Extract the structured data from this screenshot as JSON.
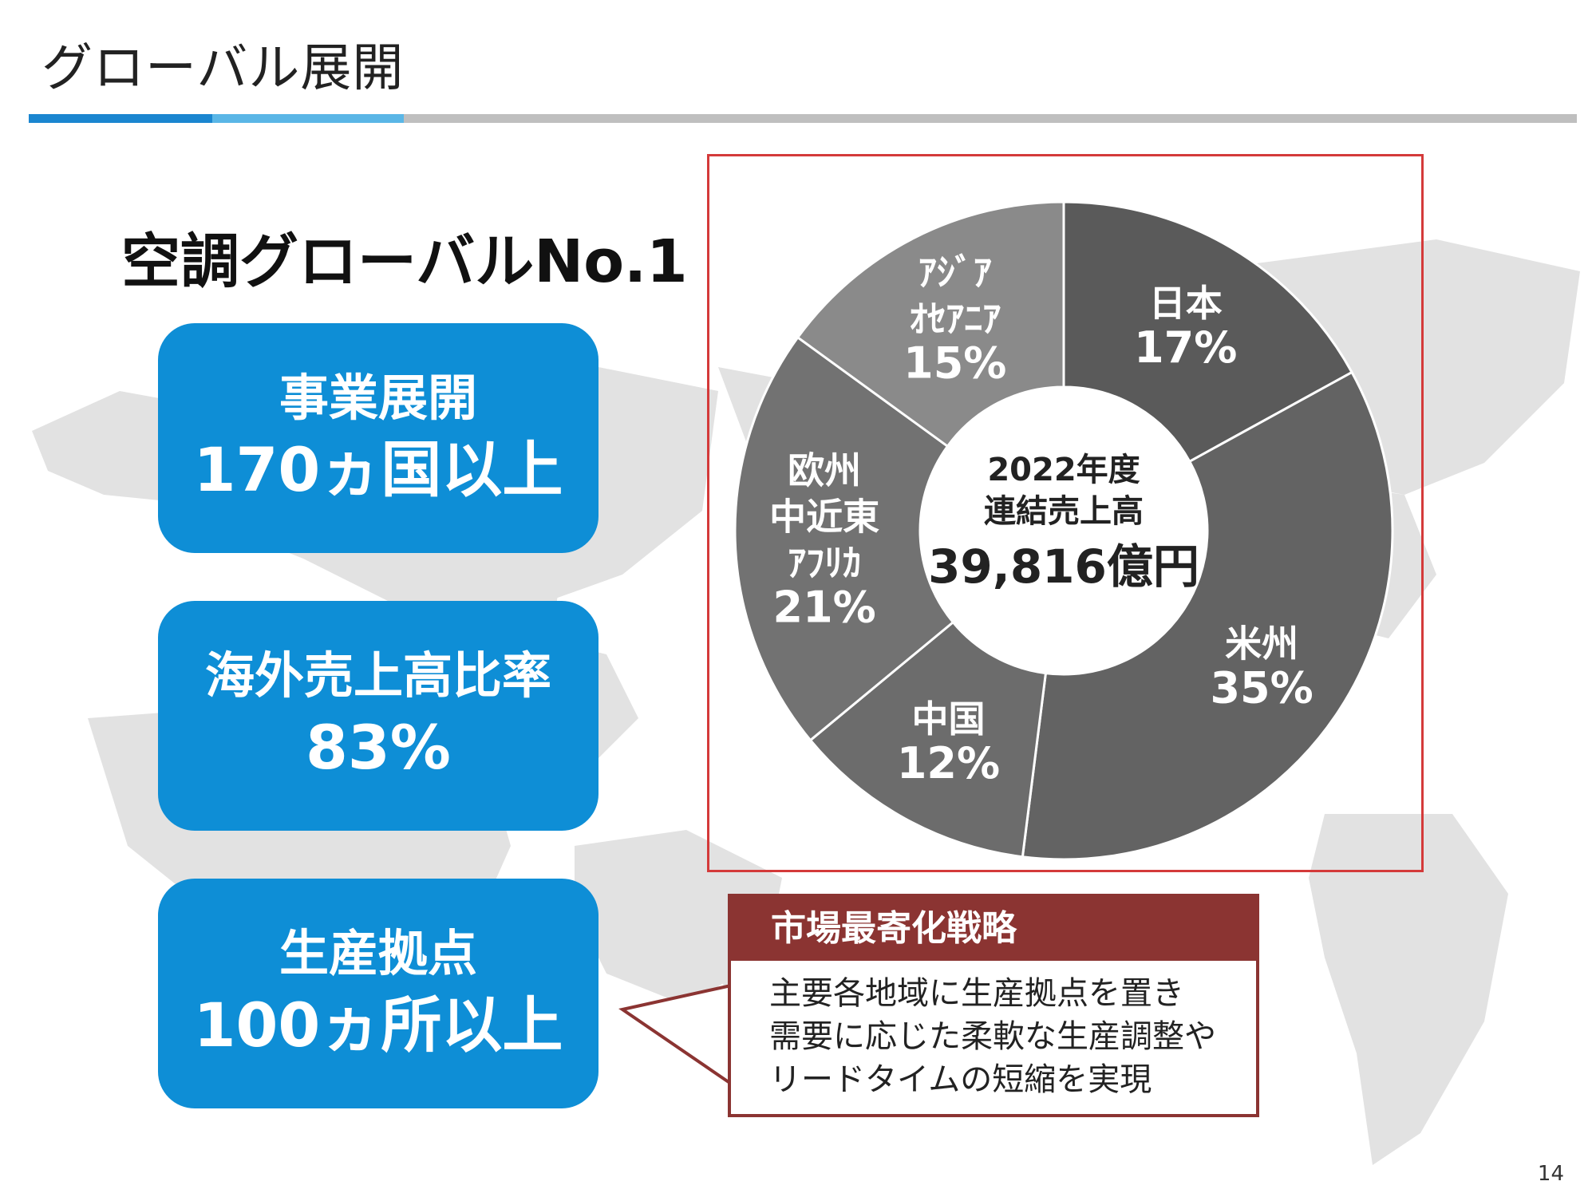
{
  "slide": {
    "title": "グローバル展開",
    "headline": "空調グローバルNo.1",
    "page_number": "14"
  },
  "stats": [
    {
      "label": "事業展開",
      "value": "170ヵ国以上"
    },
    {
      "label": "海外売上高比率",
      "value": "83%"
    },
    {
      "label": "生産拠点",
      "value": "100ヵ所以上"
    }
  ],
  "strategy": {
    "title": "市場最寄化戦略",
    "lines": [
      "主要各地域に生産拠点を置き",
      "需要に応じた柔軟な生産調整や",
      "リードタイムの短縮を実現"
    ]
  },
  "colors": {
    "accent_blue": "#0e8ed6",
    "frame_red": "#d43a3a",
    "strategy_red": "#8b3432"
  },
  "chart_data": {
    "type": "pie",
    "donut": true,
    "center": {
      "year": "2022年度",
      "caption": "連結売上高",
      "total": "39,816億円"
    },
    "categories": [
      "日本",
      "米州",
      "中国",
      "欧州中近東アフリカ",
      "アジアオセアニア"
    ],
    "values": [
      17,
      35,
      12,
      21,
      15
    ],
    "unit": "%",
    "slices": [
      {
        "label_lines": [
          "日本"
        ],
        "percent_label": "17%",
        "value": 17,
        "color": "#5a5a5a"
      },
      {
        "label_lines": [
          "米州"
        ],
        "percent_label": "35%",
        "value": 35,
        "color": "#636363"
      },
      {
        "label_lines": [
          "中国"
        ],
        "percent_label": "12%",
        "value": 12,
        "color": "#6c6c6c"
      },
      {
        "label_lines": [
          "欧州",
          "中近東",
          "ｱﾌﾘｶ"
        ],
        "percent_label": "21%",
        "value": 21,
        "color": "#727272"
      },
      {
        "label_lines": [
          "ｱｼﾞｱ",
          "ｵｾｱﾆｱ"
        ],
        "percent_label": "15%",
        "value": 15,
        "color": "#8a8a8a"
      }
    ]
  }
}
